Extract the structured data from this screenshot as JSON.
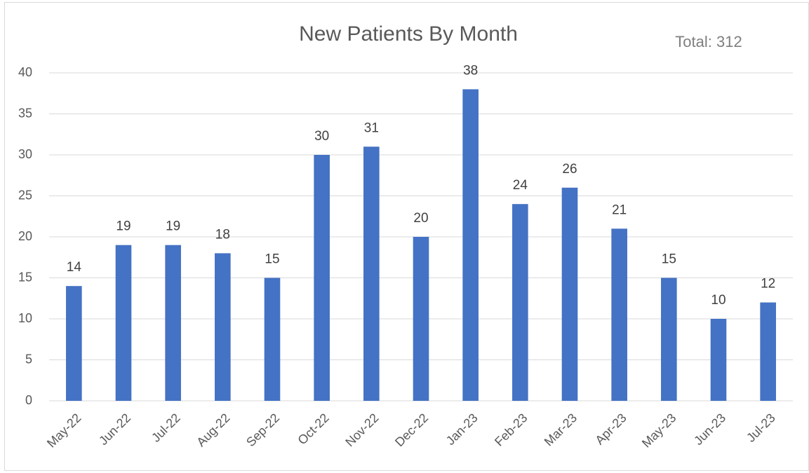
{
  "chart_data": {
    "type": "bar",
    "title": "New Patients By Month",
    "annotation": "Total: 312",
    "categories": [
      "May-22",
      "Jun-22",
      "Jul-22",
      "Aug-22",
      "Sep-22",
      "Oct-22",
      "Nov-22",
      "Dec-22",
      "Jan-23",
      "Feb-23",
      "Mar-23",
      "Apr-23",
      "May-23",
      "Jun-23",
      "Jul-23"
    ],
    "values": [
      14,
      19,
      19,
      18,
      15,
      30,
      31,
      20,
      38,
      24,
      26,
      21,
      15,
      10,
      12
    ],
    "color": "#4472c4",
    "ylim": [
      0,
      40
    ],
    "yticks": [
      0,
      5,
      10,
      15,
      20,
      25,
      30,
      35,
      40
    ],
    "grid": true
  }
}
